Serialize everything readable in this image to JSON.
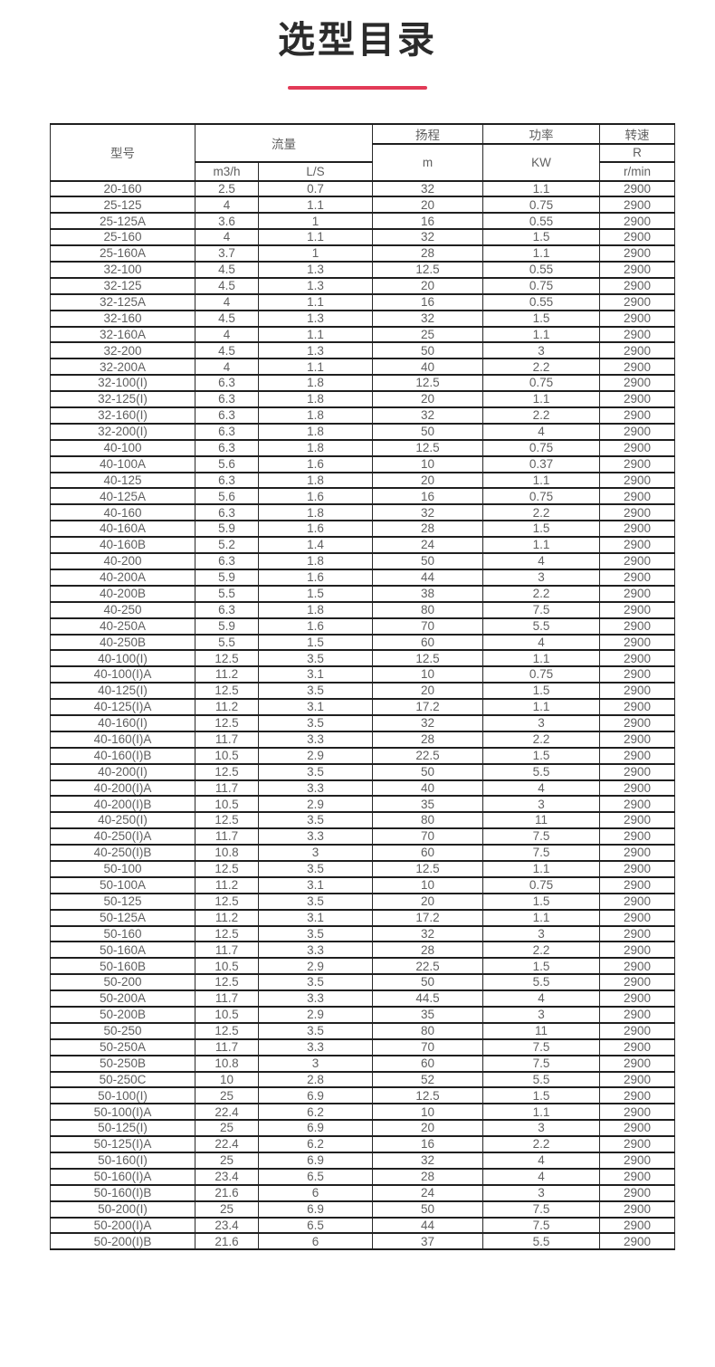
{
  "page": {
    "title": "选型目录",
    "accent_color": "#e23a57"
  },
  "table": {
    "headers": {
      "model": "型号",
      "flow": "流量",
      "flow_m3h": "m3/h",
      "flow_ls": "L/S",
      "head": "扬程",
      "head_unit": "m",
      "power": "功率",
      "power_unit": "KW",
      "speed": "转速",
      "speed_r": "R",
      "speed_unit": "r/min"
    },
    "rows": [
      [
        "20-160",
        "2.5",
        "0.7",
        "32",
        "1.1",
        "2900"
      ],
      [
        "25-125",
        "4",
        "1.1",
        "20",
        "0.75",
        "2900"
      ],
      [
        "25-125A",
        "3.6",
        "1",
        "16",
        "0.55",
        "2900"
      ],
      [
        "25-160",
        "4",
        "1.1",
        "32",
        "1.5",
        "2900"
      ],
      [
        "25-160A",
        "3.7",
        "1",
        "28",
        "1.1",
        "2900"
      ],
      [
        "32-100",
        "4.5",
        "1.3",
        "12.5",
        "0.55",
        "2900"
      ],
      [
        "32-125",
        "4.5",
        "1.3",
        "20",
        "0.75",
        "2900"
      ],
      [
        "32-125A",
        "4",
        "1.1",
        "16",
        "0.55",
        "2900"
      ],
      [
        "32-160",
        "4.5",
        "1.3",
        "32",
        "1.5",
        "2900"
      ],
      [
        "32-160A",
        "4",
        "1.1",
        "25",
        "1.1",
        "2900"
      ],
      [
        "32-200",
        "4.5",
        "1.3",
        "50",
        "3",
        "2900"
      ],
      [
        "32-200A",
        "4",
        "1.1",
        "40",
        "2.2",
        "2900"
      ],
      [
        "32-100(I)",
        "6.3",
        "1.8",
        "12.5",
        "0.75",
        "2900"
      ],
      [
        "32-125(I)",
        "6.3",
        "1.8",
        "20",
        "1.1",
        "2900"
      ],
      [
        "32-160(I)",
        "6.3",
        "1.8",
        "32",
        "2.2",
        "2900"
      ],
      [
        "32-200(I)",
        "6.3",
        "1.8",
        "50",
        "4",
        "2900"
      ],
      [
        "40-100",
        "6.3",
        "1.8",
        "12.5",
        "0.75",
        "2900"
      ],
      [
        "40-100A",
        "5.6",
        "1.6",
        "10",
        "0.37",
        "2900"
      ],
      [
        "40-125",
        "6.3",
        "1.8",
        "20",
        "1.1",
        "2900"
      ],
      [
        "40-125A",
        "5.6",
        "1.6",
        "16",
        "0.75",
        "2900"
      ],
      [
        "40-160",
        "6.3",
        "1.8",
        "32",
        "2.2",
        "2900"
      ],
      [
        "40-160A",
        "5.9",
        "1.6",
        "28",
        "1.5",
        "2900"
      ],
      [
        "40-160B",
        "5.2",
        "1.4",
        "24",
        "1.1",
        "2900"
      ],
      [
        "40-200",
        "6.3",
        "1.8",
        "50",
        "4",
        "2900"
      ],
      [
        "40-200A",
        "5.9",
        "1.6",
        "44",
        "3",
        "2900"
      ],
      [
        "40-200B",
        "5.5",
        "1.5",
        "38",
        "2.2",
        "2900"
      ],
      [
        "40-250",
        "6.3",
        "1.8",
        "80",
        "7.5",
        "2900"
      ],
      [
        "40-250A",
        "5.9",
        "1.6",
        "70",
        "5.5",
        "2900"
      ],
      [
        "40-250B",
        "5.5",
        "1.5",
        "60",
        "4",
        "2900"
      ],
      [
        "40-100(I)",
        "12.5",
        "3.5",
        "12.5",
        "1.1",
        "2900"
      ],
      [
        "40-100(I)A",
        "11.2",
        "3.1",
        "10",
        "0.75",
        "2900"
      ],
      [
        "40-125(I)",
        "12.5",
        "3.5",
        "20",
        "1.5",
        "2900"
      ],
      [
        "40-125(I)A",
        "11.2",
        "3.1",
        "17.2",
        "1.1",
        "2900"
      ],
      [
        "40-160(I)",
        "12.5",
        "3.5",
        "32",
        "3",
        "2900"
      ],
      [
        "40-160(I)A",
        "11.7",
        "3.3",
        "28",
        "2.2",
        "2900"
      ],
      [
        "40-160(I)B",
        "10.5",
        "2.9",
        "22.5",
        "1.5",
        "2900"
      ],
      [
        "40-200(I)",
        "12.5",
        "3.5",
        "50",
        "5.5",
        "2900"
      ],
      [
        "40-200(I)A",
        "11.7",
        "3.3",
        "40",
        "4",
        "2900"
      ],
      [
        "40-200(I)B",
        "10.5",
        "2.9",
        "35",
        "3",
        "2900"
      ],
      [
        "40-250(I)",
        "12.5",
        "3.5",
        "80",
        "11",
        "2900"
      ],
      [
        "40-250(I)A",
        "11.7",
        "3.3",
        "70",
        "7.5",
        "2900"
      ],
      [
        "40-250(I)B",
        "10.8",
        "3",
        "60",
        "7.5",
        "2900"
      ],
      [
        "50-100",
        "12.5",
        "3.5",
        "12.5",
        "1.1",
        "2900"
      ],
      [
        "50-100A",
        "11.2",
        "3.1",
        "10",
        "0.75",
        "2900"
      ],
      [
        "50-125",
        "12.5",
        "3.5",
        "20",
        "1.5",
        "2900"
      ],
      [
        "50-125A",
        "11.2",
        "3.1",
        "17.2",
        "1.1",
        "2900"
      ],
      [
        "50-160",
        "12.5",
        "3.5",
        "32",
        "3",
        "2900"
      ],
      [
        "50-160A",
        "11.7",
        "3.3",
        "28",
        "2.2",
        "2900"
      ],
      [
        "50-160B",
        "10.5",
        "2.9",
        "22.5",
        "1.5",
        "2900"
      ],
      [
        "50-200",
        "12.5",
        "3.5",
        "50",
        "5.5",
        "2900"
      ],
      [
        "50-200A",
        "11.7",
        "3.3",
        "44.5",
        "4",
        "2900"
      ],
      [
        "50-200B",
        "10.5",
        "2.9",
        "35",
        "3",
        "2900"
      ],
      [
        "50-250",
        "12.5",
        "3.5",
        "80",
        "11",
        "2900"
      ],
      [
        "50-250A",
        "11.7",
        "3.3",
        "70",
        "7.5",
        "2900"
      ],
      [
        "50-250B",
        "10.8",
        "3",
        "60",
        "7.5",
        "2900"
      ],
      [
        "50-250C",
        "10",
        "2.8",
        "52",
        "5.5",
        "2900"
      ],
      [
        "50-100(I)",
        "25",
        "6.9",
        "12.5",
        "1.5",
        "2900"
      ],
      [
        "50-100(I)A",
        "22.4",
        "6.2",
        "10",
        "1.1",
        "2900"
      ],
      [
        "50-125(I)",
        "25",
        "6.9",
        "20",
        "3",
        "2900"
      ],
      [
        "50-125(I)A",
        "22.4",
        "6.2",
        "16",
        "2.2",
        "2900"
      ],
      [
        "50-160(I)",
        "25",
        "6.9",
        "32",
        "4",
        "2900"
      ],
      [
        "50-160(I)A",
        "23.4",
        "6.5",
        "28",
        "4",
        "2900"
      ],
      [
        "50-160(I)B",
        "21.6",
        "6",
        "24",
        "3",
        "2900"
      ],
      [
        "50-200(I)",
        "25",
        "6.9",
        "50",
        "7.5",
        "2900"
      ],
      [
        "50-200(I)A",
        "23.4",
        "6.5",
        "44",
        "7.5",
        "2900"
      ],
      [
        "50-200(I)B",
        "21.6",
        "6",
        "37",
        "5.5",
        "2900"
      ]
    ]
  }
}
